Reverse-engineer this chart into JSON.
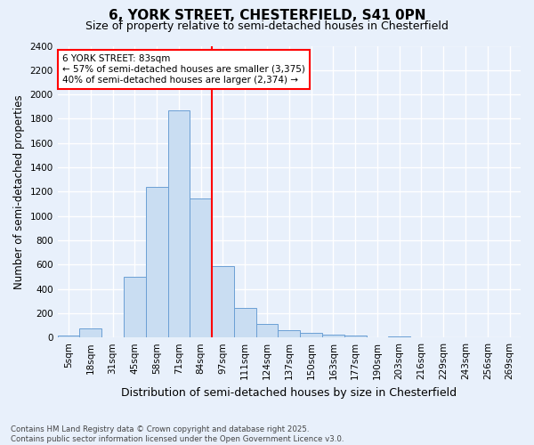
{
  "title": "6, YORK STREET, CHESTERFIELD, S41 0PN",
  "subtitle": "Size of property relative to semi-detached houses in Chesterfield",
  "xlabel": "Distribution of semi-detached houses by size in Chesterfield",
  "ylabel": "Number of semi-detached properties",
  "footer_line1": "Contains HM Land Registry data © Crown copyright and database right 2025.",
  "footer_line2": "Contains public sector information licensed under the Open Government Licence v3.0.",
  "bar_labels": [
    "5sqm",
    "18sqm",
    "31sqm",
    "45sqm",
    "58sqm",
    "71sqm",
    "84sqm",
    "97sqm",
    "111sqm",
    "124sqm",
    "137sqm",
    "150sqm",
    "163sqm",
    "177sqm",
    "190sqm",
    "203sqm",
    "216sqm",
    "229sqm",
    "243sqm",
    "256sqm",
    "269sqm"
  ],
  "bar_values": [
    15,
    75,
    0,
    500,
    1240,
    1870,
    1145,
    590,
    240,
    110,
    60,
    35,
    20,
    15,
    0,
    10,
    0,
    0,
    0,
    0,
    0
  ],
  "bar_color": "#c9ddf2",
  "bar_edge_color": "#6b9fd4",
  "vline_x_index": 6.5,
  "vline_color": "red",
  "annotation_text": "6 YORK STREET: 83sqm\n← 57% of semi-detached houses are smaller (3,375)\n40% of semi-detached houses are larger (2,374) →",
  "annotation_box_color": "white",
  "annotation_box_edge": "red",
  "ylim": [
    0,
    2400
  ],
  "yticks": [
    0,
    200,
    400,
    600,
    800,
    1000,
    1200,
    1400,
    1600,
    1800,
    2000,
    2200,
    2400
  ],
  "bg_color": "#e8f0fb",
  "grid_color": "white",
  "title_fontsize": 11,
  "subtitle_fontsize": 9,
  "tick_fontsize": 7.5,
  "ylabel_fontsize": 8.5,
  "xlabel_fontsize": 9
}
